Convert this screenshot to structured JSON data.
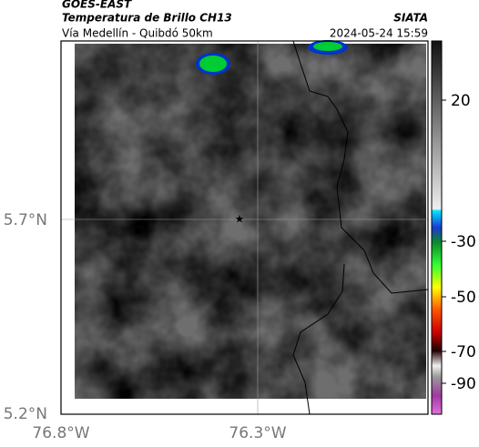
{
  "header": {
    "title": "GOES-EAST",
    "subtitle": "Temperatura de Brillo CH13",
    "source": "SIATA",
    "route": "Vía Medellín - Quibdó 50km",
    "datetime": "2024-05-24 15:59"
  },
  "axes": {
    "y_labels": [
      "5.7°N",
      "5.2°N"
    ],
    "x_labels": [
      "76.8°W",
      "76.3°W"
    ]
  },
  "colorbar": {
    "ticks": [
      "20",
      "-30",
      "-50",
      "-70",
      "-90"
    ]
  }
}
